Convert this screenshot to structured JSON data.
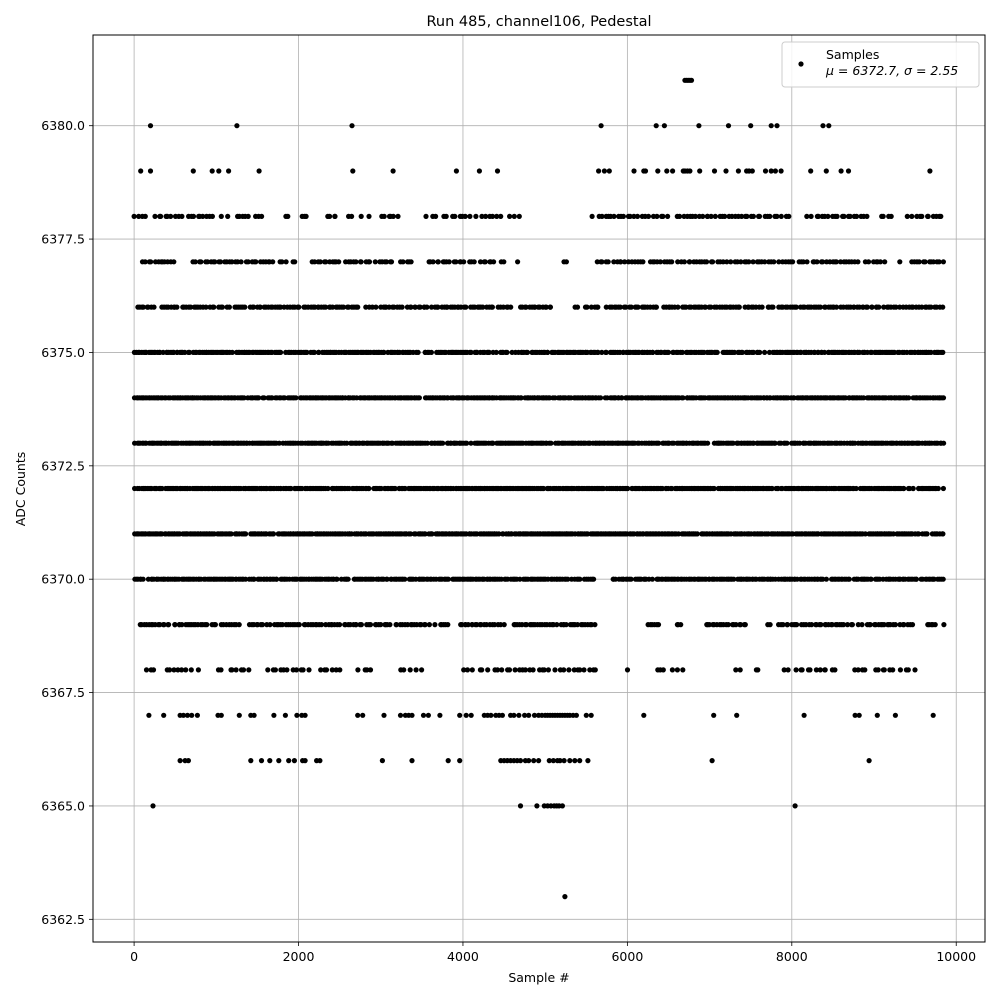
{
  "chart_data": {
    "type": "scatter",
    "title": "Run 485, channel106, Pedestal",
    "xlabel": "Sample #",
    "ylabel": "ADC Counts",
    "xlim": [
      -500,
      10350
    ],
    "ylim": [
      6362.0,
      6382.0
    ],
    "xticks": [
      0,
      2000,
      4000,
      6000,
      8000,
      10000
    ],
    "xtick_labels": [
      "0",
      "2000",
      "4000",
      "6000",
      "8000",
      "10000"
    ],
    "yticks": [
      6362.5,
      6365.0,
      6367.5,
      6370.0,
      6372.5,
      6375.0,
      6377.5,
      6380.0
    ],
    "ytick_labels": [
      "6362.5",
      "6365.0",
      "6367.5",
      "6370.0",
      "6372.5",
      "6375.0",
      "6377.5",
      "6380.0"
    ],
    "grid": true,
    "legend": {
      "placement": "top-right",
      "entries": [
        {
          "label": "Samples",
          "sublabel": "μ = 6372.7, σ = 2.55"
        }
      ]
    },
    "series": [
      {
        "name": "Samples",
        "color": "#000000",
        "marker": "dot",
        "levels": [
          {
            "y": 6381,
            "x": [
              6700,
              6720,
              6740,
              6760,
              6780
            ]
          },
          {
            "y": 6380,
            "x": [
              200,
              1250,
              2650,
              5680,
              6350,
              6450,
              6870,
              7230,
              7500,
              7750,
              7820,
              8380,
              8450
            ]
          },
          {
            "y": 6379,
            "x": [
              80,
              200,
              720,
              950,
              1030,
              1150,
              1520,
              2660,
              3150,
              3920,
              4200,
              4420,
              5650,
              5720,
              5780,
              6080,
              6200,
              6220,
              6370,
              6480,
              6550,
              6680,
              6700,
              6730,
              6760,
              6880,
              7060,
              7200,
              7350,
              7450,
              7480,
              7520,
              7680,
              7750,
              7800,
              7870,
              8230,
              8420,
              8600,
              8690,
              9680
            ]
          }
        ],
        "bands": [
          {
            "y": 6378,
            "x_from": 0,
            "x_to": 9850,
            "count": 250,
            "gaps": [
              [
                1560,
                1800
              ],
              [
                1900,
                2000
              ],
              [
                2100,
                2300
              ],
              [
                2500,
                2600
              ],
              [
                2900,
                3000
              ],
              [
                3250,
                3550
              ],
              [
                4700,
                5550
              ],
              [
                8000,
                8150
              ],
              [
                8950,
                9050
              ],
              [
                9250,
                9350
              ]
            ]
          },
          {
            "y": 6377,
            "x_from": 100,
            "x_to": 9850,
            "count": 290,
            "gaps": [
              [
                500,
                700
              ],
              [
                1700,
                1760
              ],
              [
                2000,
                2150
              ],
              [
                3400,
                3550
              ],
              [
                4500,
                4650
              ],
              [
                4700,
                5200
              ],
              [
                5300,
                5600
              ],
              [
                9150,
                9300
              ]
            ]
          },
          {
            "y": 6376,
            "x_from": 0,
            "x_to": 9850,
            "count": 360,
            "gaps": [
              [
                4600,
                4700
              ],
              [
                5100,
                5350
              ],
              [
                5420,
                5480
              ]
            ]
          },
          {
            "y": 6375,
            "x_from": 0,
            "x_to": 9850,
            "count": 470,
            "gaps": []
          },
          {
            "y": 6374,
            "x_from": 0,
            "x_to": 9850,
            "count": 540,
            "gaps": []
          },
          {
            "y": 6373,
            "x_from": 0,
            "x_to": 9850,
            "count": 560,
            "gaps": []
          },
          {
            "y": 6372,
            "x_from": 0,
            "x_to": 9850,
            "count": 580,
            "gaps": []
          },
          {
            "y": 6371,
            "x_from": 0,
            "x_to": 9850,
            "count": 560,
            "gaps": []
          },
          {
            "y": 6370,
            "x_from": 0,
            "x_to": 9850,
            "count": 500,
            "gaps": [
              [
                5600,
                5800
              ]
            ]
          },
          {
            "y": 6369,
            "x_from": 60,
            "x_to": 9850,
            "count": 360,
            "gaps": [
              [
                900,
                940
              ],
              [
                1300,
                1400
              ],
              [
                2500,
                2560
              ],
              [
                3850,
                3950
              ],
              [
                5620,
                5800
              ],
              [
                5800,
                6250
              ],
              [
                6400,
                6600
              ],
              [
                6650,
                6950
              ],
              [
                7450,
                7700
              ],
              [
                7750,
                7800
              ],
              [
                9500,
                9650
              ],
              [
                9760,
                9830
              ]
            ]
          },
          {
            "y": 6368,
            "x_from": 120,
            "x_to": 9750,
            "count": 200,
            "gaps": [
              [
                300,
                330
              ],
              [
                800,
                1000
              ],
              [
                1400,
                1600
              ],
              [
                2150,
                2200
              ],
              [
                2550,
                2700
              ],
              [
                2900,
                3200
              ],
              [
                3500,
                4000
              ],
              [
                4150,
                4200
              ],
              [
                5650,
                5950
              ],
              [
                6050,
                6300
              ],
              [
                6700,
                7300
              ],
              [
                7400,
                7550
              ],
              [
                7650,
                7850
              ],
              [
                8550,
                8750
              ],
              [
                9550,
                9750
              ]
            ]
          }
        ],
        "points": [
          {
            "y": 6367,
            "x": [
              180,
              360,
              560,
              600,
              650,
              700,
              770,
              1020,
              1060,
              1280,
              1420,
              1460,
              1700,
              1840,
              1980,
              2040,
              2080,
              2720,
              2780,
              3040,
              3240,
              3300,
              3340,
              3380,
              3520,
              3580,
              3720,
              3960,
              4040,
              4100,
              4260,
              4300,
              4340,
              4400,
              4440,
              4480,
              4580,
              4620,
              4680,
              4750,
              4800,
              4870,
              4920,
              4960,
              5000,
              5030,
              5060,
              5090,
              5120,
              5150,
              5180,
              5210,
              5240,
              5270,
              5300,
              5340,
              5380,
              5500,
              5560,
              6200,
              7050,
              7330,
              8150,
              8770,
              8820,
              9040,
              9260,
              9720
            ]
          },
          {
            "y": 6366,
            "x": [
              560,
              620,
              660,
              1420,
              1550,
              1650,
              1760,
              1880,
              1950,
              2050,
              2080,
              2220,
              2260,
              3020,
              3380,
              3820,
              3960,
              4460,
              4500,
              4540,
              4580,
              4620,
              4660,
              4700,
              4760,
              4800,
              4860,
              4920,
              5050,
              5100,
              5150,
              5180,
              5230,
              5300,
              5360,
              5420,
              5520,
              7030,
              8940
            ]
          },
          {
            "y": 6365,
            "x": [
              230,
              4700,
              4900,
              4990,
              5030,
              5070,
              5110,
              5140,
              5170,
              5210,
              8040
            ]
          },
          {
            "y": 6363,
            "x": [
              5240
            ]
          }
        ]
      }
    ]
  }
}
